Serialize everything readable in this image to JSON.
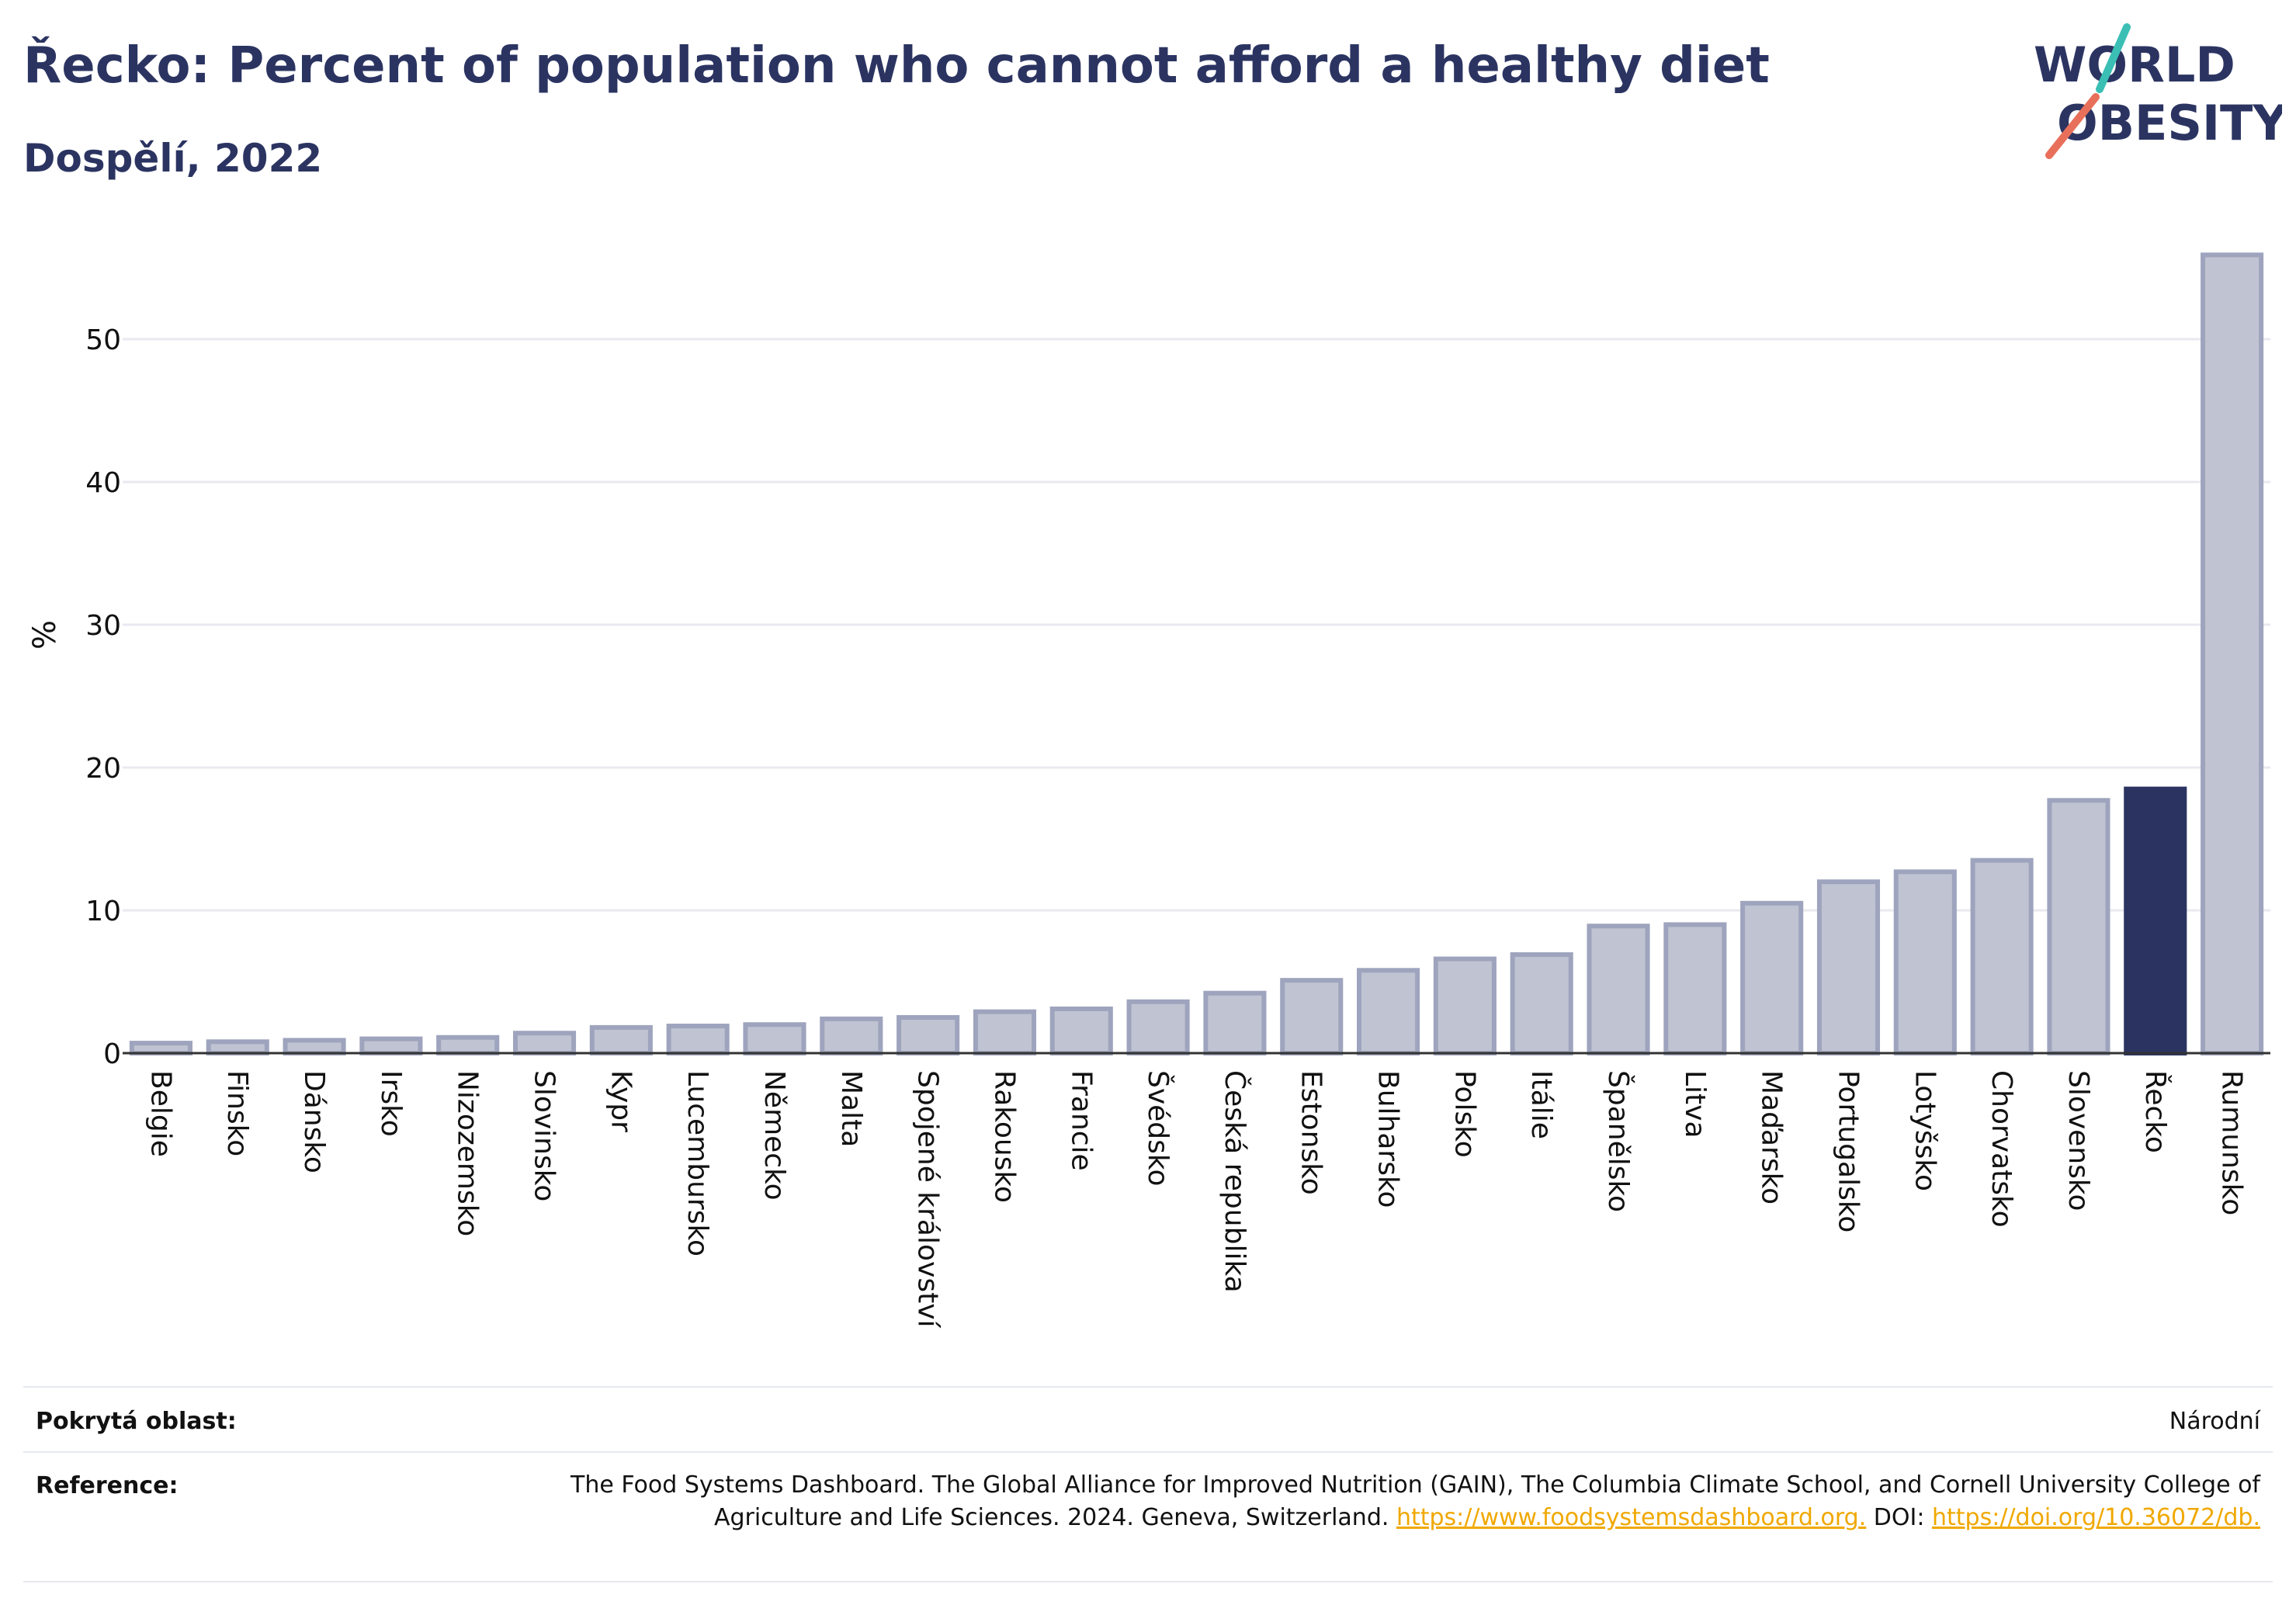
{
  "header": {
    "title": "Řecko: Percent of population who cannot afford a healthy diet",
    "subtitle": "Dospělí, 2022"
  },
  "logo": {
    "line1": "WORLD",
    "line2": "OBESITY"
  },
  "colors": {
    "bar": "#c0c3d1",
    "bar_border": "#9ea4bd",
    "highlight": "#2b3461",
    "grid": "#e9eaf0"
  },
  "chart_data": {
    "type": "bar",
    "ylabel": "%",
    "ylim": [
      0,
      57
    ],
    "yticks": [
      0,
      10,
      20,
      30,
      40,
      50
    ],
    "grid": true,
    "highlight": "Řecko",
    "categories": [
      "Belgie",
      "Finsko",
      "Dánsko",
      "Irsko",
      "Nizozemsko",
      "Slovinsko",
      "Kypr",
      "Lucembursko",
      "Německo",
      "Malta",
      "Spojené království",
      "Rakousko",
      "Francie",
      "Švédsko",
      "Česká republika",
      "Estonsko",
      "Bulharsko",
      "Polsko",
      "Itálie",
      "Španělsko",
      "Litva",
      "Maďarsko",
      "Portugalsko",
      "Lotyšsko",
      "Chorvatsko",
      "Slovensko",
      "Řecko",
      "Rumunsko"
    ],
    "values": [
      0.7,
      0.8,
      0.9,
      1.0,
      1.1,
      1.4,
      1.8,
      1.9,
      2.0,
      2.4,
      2.5,
      2.9,
      3.1,
      3.6,
      4.2,
      5.1,
      5.8,
      6.6,
      6.9,
      8.9,
      9.0,
      10.5,
      12.0,
      12.7,
      13.5,
      17.7,
      18.5,
      55.9
    ]
  },
  "footer": {
    "coverage_label": "Pokrytá oblast:",
    "coverage_value": "Národní",
    "reference_label": "Reference:",
    "reference_text_1": "The Food Systems Dashboard. The Global Alliance for Improved Nutrition (GAIN), The Columbia Climate School, and Cornell University College of Agriculture and Life Sciences. 2024. Geneva, Switzerland. ",
    "reference_link_1": "https://www.foodsystemsdashboard.org.",
    "reference_text_2": " DOI: ",
    "reference_link_2": "https://doi.org/10.36072/db."
  }
}
